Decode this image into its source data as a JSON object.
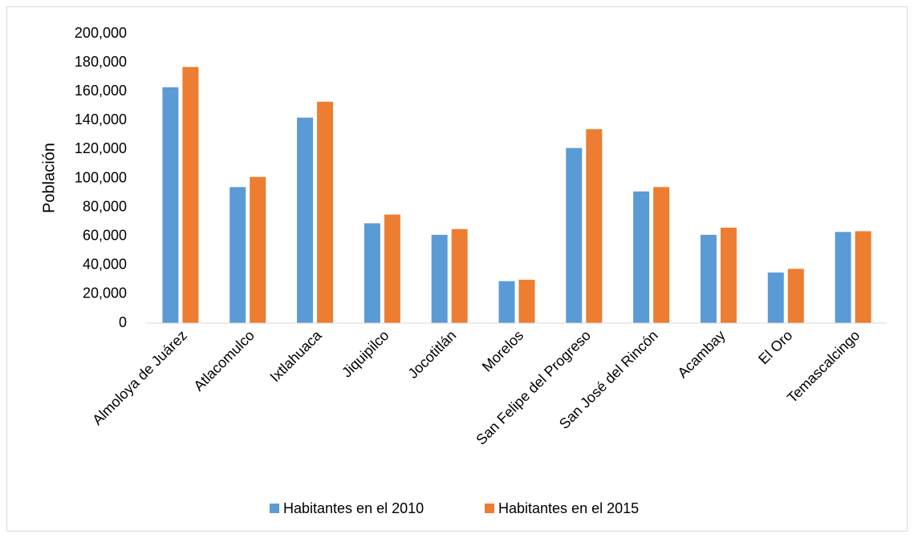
{
  "chart_data": {
    "type": "bar",
    "ylabel": "Población",
    "categories": [
      "Almoloya de Juárez",
      "Atlacomulco",
      "Ixtlahuaca",
      "Jiquipilco",
      "Jocotitlán",
      "Morelos",
      "San Felipe del Progreso",
      "San José del Rincón",
      "Acambay",
      "El Oro",
      "Temascalcingo"
    ],
    "series": [
      {
        "name": "Habitantes en el 2010",
        "color": "#5b9bd5",
        "values": [
          163000,
          94000,
          142000,
          69000,
          61000,
          29000,
          121000,
          91000,
          61000,
          35000,
          63000
        ]
      },
      {
        "name": "Habitantes en el 2015",
        "color": "#ed7d31",
        "values": [
          177000,
          101000,
          153000,
          75000,
          65000,
          30000,
          134000,
          94000,
          66000,
          37500,
          63500
        ]
      }
    ],
    "ylim": [
      0,
      200000
    ],
    "yticks": [
      0,
      {
        "value": 20000,
        "label": "20,000"
      },
      {
        "value": 40000,
        "label": "40,000"
      },
      {
        "value": 60000,
        "label": "60,000"
      },
      {
        "value": 80000,
        "label": "80,000"
      },
      {
        "value": 100000,
        "label": "100,000"
      },
      {
        "value": 120000,
        "label": "120,000"
      },
      {
        "value": 140000,
        "label": "140,000"
      },
      {
        "value": 160000,
        "label": "160,000"
      },
      {
        "value": 180000,
        "label": "180,000"
      },
      {
        "value": 200000,
        "label": "200,000"
      }
    ],
    "grid": false,
    "legend": "bottom"
  }
}
